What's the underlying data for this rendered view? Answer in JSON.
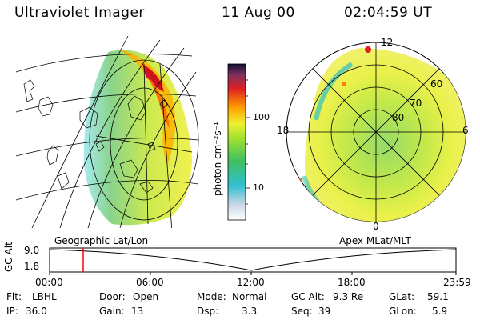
{
  "header": {
    "title": "Ultraviolet Imager",
    "date": "11 Aug 00",
    "time": "02:04:59 UT"
  },
  "colorbar": {
    "label": "photon cm⁻²s⁻¹",
    "ticks": [
      "100",
      "10"
    ]
  },
  "left_panel": {
    "caption": "Geographic Lat/Lon"
  },
  "right_panel": {
    "caption": "Apex MLat/MLT",
    "mlt_labels": [
      "12",
      "18",
      "6",
      "0"
    ],
    "lat_labels": [
      "60",
      "70",
      "80"
    ]
  },
  "timeline": {
    "ylabel": "GC Alt",
    "y_ticks": [
      "9.0",
      "1.8"
    ],
    "x_ticks": [
      "00:00",
      "06:00",
      "12:00",
      "18:00",
      "23:59"
    ],
    "marker_color": "#ff0000"
  },
  "info": {
    "flt_label": "Flt:",
    "flt_value": "LBHL",
    "ip_label": "IP:",
    "ip_value": "36.0",
    "door_label": "Door:",
    "door_value": "Open",
    "gain_label": "Gain:",
    "gain_value": "13",
    "mode_label": "Mode:",
    "mode_value": "Normal",
    "dsp_label": "Dsp:",
    "dsp_value": "3.3",
    "gcalt_label": "GC Alt:",
    "gcalt_value": "9.3 Re",
    "seq_label": "Seq:",
    "seq_value": "39",
    "glat_label": "GLat:",
    "glat_value": "59.1",
    "glon_label": "GLon:",
    "glon_value": "5.9"
  }
}
